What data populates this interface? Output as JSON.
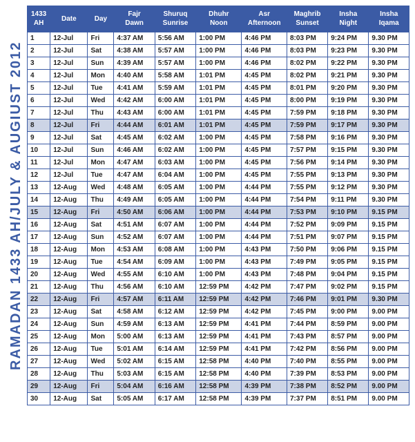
{
  "vertical_title": "RAMADAN 1433 AH/JULY &  AUGIUST  2012",
  "headers": [
    "1433 AH",
    "Date",
    "Day",
    "Fajr Dawn",
    "Shuruq Sunrise",
    "Dhuhr Noon",
    "Asr Afternoon",
    "Maghrib Sunset",
    "Insha Night",
    "Insha Iqama"
  ],
  "rows": [
    {
      "hl": false,
      "c": [
        "1",
        "12-Jul",
        "Fri",
        "4:37 AM",
        "5:56 AM",
        "1:00 PM",
        "4:46 PM",
        "8:03 PM",
        "9:24 PM",
        "9.30 PM"
      ]
    },
    {
      "hl": false,
      "c": [
        "2",
        "12-Jul",
        "Sat",
        "4:38 AM",
        "5:57 AM",
        "1:00 PM",
        "4:46 PM",
        "8:03 PM",
        "9:23 PM",
        "9.30 PM"
      ]
    },
    {
      "hl": false,
      "c": [
        "3",
        "12-Jul",
        "Sun",
        "4:39 AM",
        "5:57 AM",
        "1:00 PM",
        "4:46 PM",
        "8:02 PM",
        "9:22 PM",
        "9.30 PM"
      ]
    },
    {
      "hl": false,
      "c": [
        "4",
        "12-Jul",
        "Mon",
        "4:40 AM",
        "5:58 AM",
        "1:01 PM",
        "4:45 PM",
        "8:02 PM",
        "9:21 PM",
        "9.30 PM"
      ]
    },
    {
      "hl": false,
      "c": [
        "5",
        "12-Jul",
        "Tue",
        "4:41 AM",
        "5:59 AM",
        "1:01 PM",
        "4:45 PM",
        "8:01 PM",
        "9:20 PM",
        "9.30 PM"
      ]
    },
    {
      "hl": false,
      "c": [
        "6",
        "12-Jul",
        "Wed",
        "4:42 AM",
        "6:00 AM",
        "1:01 PM",
        "4:45 PM",
        "8:00 PM",
        "9:19 PM",
        "9.30 PM"
      ]
    },
    {
      "hl": false,
      "c": [
        "7",
        "12-Jul",
        "Thu",
        "4:43 AM",
        "6:00 AM",
        "1:01 PM",
        "4:45 PM",
        "7:59 PM",
        "9:18 PM",
        "9.30 PM"
      ]
    },
    {
      "hl": true,
      "c": [
        "8",
        "12-Jul",
        "Fri",
        "4:44 AM",
        "6:01 AM",
        "1:01 PM",
        "4:45 PM",
        "7:59 PM",
        "9:17 PM",
        "9.30 PM"
      ]
    },
    {
      "hl": false,
      "c": [
        "9",
        "12-Jul",
        "Sat",
        "4:45 AM",
        "6:02 AM",
        "1:00 PM",
        "4:45 PM",
        "7:58 PM",
        "9:16 PM",
        "9.30 PM"
      ]
    },
    {
      "hl": false,
      "c": [
        "10",
        "12-Jul",
        "Sun",
        "4:46 AM",
        "6:02 AM",
        "1:00 PM",
        "4:45 PM",
        "7:57 PM",
        "9:15 PM",
        "9.30 PM"
      ]
    },
    {
      "hl": false,
      "c": [
        "11",
        "12-Jul",
        "Mon",
        "4:47 AM",
        "6:03 AM",
        "1:00 PM",
        "4:45 PM",
        "7:56 PM",
        "9:14 PM",
        "9.30 PM"
      ]
    },
    {
      "hl": false,
      "c": [
        "12",
        "12-Jul",
        "Tue",
        "4:47 AM",
        "6:04 AM",
        "1:00 PM",
        "4:45 PM",
        "7:55 PM",
        "9:13 PM",
        "9.30 PM"
      ]
    },
    {
      "hl": false,
      "c": [
        "13",
        "12-Aug",
        "Wed",
        "4:48 AM",
        "6:05 AM",
        "1:00 PM",
        "4:44 PM",
        "7:55 PM",
        "9:12 PM",
        "9.30 PM"
      ]
    },
    {
      "hl": false,
      "c": [
        "14",
        "12-Aug",
        "Thu",
        "4:49 AM",
        "6:05 AM",
        "1:00 PM",
        "4:44 PM",
        "7:54 PM",
        "9:11 PM",
        "9.30 PM"
      ]
    },
    {
      "hl": true,
      "c": [
        "15",
        "12-Aug",
        "Fri",
        "4:50 AM",
        "6:06 AM",
        "1:00 PM",
        "4:44 PM",
        "7:53 PM",
        "9:10 PM",
        "9.15 PM"
      ]
    },
    {
      "hl": false,
      "c": [
        "16",
        "12-Aug",
        "Sat",
        "4:51 AM",
        "6:07 AM",
        "1:00 PM",
        "4:44 PM",
        "7:52 PM",
        "9:09 PM",
        "9.15 PM"
      ]
    },
    {
      "hl": false,
      "c": [
        "17",
        "12-Aug",
        "Sun",
        "4:52 AM",
        "6:07 AM",
        "1:00 PM",
        "4:44 PM",
        "7:51 PM",
        "9:07 PM",
        "9.15 PM"
      ]
    },
    {
      "hl": false,
      "c": [
        "18",
        "12-Aug",
        "Mon",
        "4:53 AM",
        "6:08 AM",
        "1:00 PM",
        "4:43 PM",
        "7:50 PM",
        "9:06 PM",
        "9.15 PM"
      ]
    },
    {
      "hl": false,
      "c": [
        "19",
        "12-Aug",
        "Tue",
        "4:54 AM",
        "6:09 AM",
        "1:00 PM",
        "4:43 PM",
        "7:49 PM",
        "9:05 PM",
        "9.15 PM"
      ]
    },
    {
      "hl": false,
      "c": [
        "20",
        "12-Aug",
        "Wed",
        "4:55 AM",
        "6:10 AM",
        "1:00 PM",
        "4:43 PM",
        "7:48 PM",
        "9:04 PM",
        "9.15 PM"
      ]
    },
    {
      "hl": false,
      "c": [
        "21",
        "12-Aug",
        "Thu",
        "4:56 AM",
        "6:10 AM",
        "12:59 PM",
        "4:42 PM",
        "7:47 PM",
        "9:02 PM",
        "9.15 PM"
      ]
    },
    {
      "hl": true,
      "c": [
        "22",
        "12-Aug",
        "Fri",
        "4:57 AM",
        "6:11 AM",
        "12:59 PM",
        "4:42 PM",
        "7:46 PM",
        "9:01 PM",
        "9.30 PM"
      ]
    },
    {
      "hl": false,
      "c": [
        "23",
        "12-Aug",
        "Sat",
        "4:58 AM",
        "6:12 AM",
        "12:59 PM",
        "4:42 PM",
        "7:45 PM",
        "9:00 PM",
        "9.00 PM"
      ]
    },
    {
      "hl": false,
      "c": [
        "24",
        "12-Aug",
        "Sun",
        "4:59 AM",
        "6:13 AM",
        "12:59 PM",
        "4:41 PM",
        "7:44 PM",
        "8:59 PM",
        "9.00 PM"
      ]
    },
    {
      "hl": false,
      "c": [
        "25",
        "12-Aug",
        "Mon",
        "5:00 AM",
        "6:13 AM",
        "12:59 PM",
        "4:41 PM",
        "7:43 PM",
        "8:57 PM",
        "9.00 PM"
      ]
    },
    {
      "hl": false,
      "c": [
        "26",
        "12-Aug",
        "Tue",
        "5:01 AM",
        "6:14 AM",
        "12:59 PM",
        "4:41 PM",
        "7:42 PM",
        "8:56 PM",
        "9.00 PM"
      ]
    },
    {
      "hl": false,
      "c": [
        "27",
        "12-Aug",
        "Wed",
        "5:02 AM",
        "6:15 AM",
        "12:58 PM",
        "4:40 PM",
        "7:40 PM",
        "8:55 PM",
        "9.00 PM"
      ]
    },
    {
      "hl": false,
      "c": [
        "28",
        "12-Aug",
        "Thu",
        "5:03 AM",
        "6:15 AM",
        "12:58 PM",
        "4:40 PM",
        "7:39 PM",
        "8:53 PM",
        "9.00 PM"
      ]
    },
    {
      "hl": true,
      "c": [
        "29",
        "12-Aug",
        "Fri",
        "5:04 AM",
        "6:16 AM",
        "12:58 PM",
        "4:39 PM",
        "7:38 PM",
        "8:52 PM",
        "9.00 PM"
      ]
    },
    {
      "hl": false,
      "c": [
        "30",
        "12-Aug",
        "Sat",
        "5:05 AM",
        "6:17 AM",
        "12:58 PM",
        "4:39 PM",
        "7:37 PM",
        "8:51 PM",
        "9.00 PM"
      ]
    }
  ],
  "colors": {
    "primary": "#3b5ba5",
    "highlight_row": "#ccd4e6",
    "table_bg": "#ffffff"
  }
}
